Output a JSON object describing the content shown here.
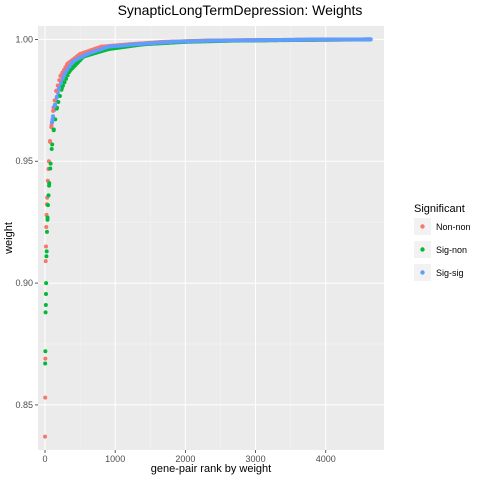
{
  "chart_data": {
    "type": "scatter",
    "title": "SynapticLongTermDepression: Weights",
    "xlabel": "gene-pair rank by weight",
    "ylabel": "weight",
    "xlim": [
      -100,
      4830
    ],
    "ylim": [
      0.8315,
      1.0055
    ],
    "x_ticks": [
      0,
      1000,
      2000,
      3000,
      4000
    ],
    "y_ticks": [
      0.85,
      0.9,
      0.95,
      1.0
    ],
    "x_tick_labels": [
      "0",
      "1000",
      "2000",
      "3000",
      "4000"
    ],
    "y_tick_labels": [
      "0.85",
      "0.90",
      "0.95",
      "1.00"
    ],
    "grid": true,
    "legend_position": "right",
    "legend": {
      "title": "Significant",
      "entries": [
        "Non-non",
        "Sig-non",
        "Sig-sig"
      ]
    },
    "colors": {
      "Non-non": "#F8766D",
      "Sig-non": "#00BA38",
      "Sig-sig": "#619CFF",
      "panel": "#EBEBEB",
      "grid": "#FFFFFF"
    },
    "curve_note_n_points": 4640,
    "series": [
      {
        "name": "Non-non",
        "points": [
          [
            0,
            0.837
          ],
          [
            3,
            0.853
          ],
          [
            10,
            0.909
          ],
          [
            14,
            0.915
          ],
          [
            18,
            0.923
          ],
          [
            22,
            0.928
          ],
          [
            30,
            0.935
          ],
          [
            40,
            0.942
          ],
          [
            55,
            0.95
          ],
          [
            70,
            0.958
          ],
          [
            90,
            0.964
          ],
          [
            120,
            0.972
          ],
          [
            160,
            0.979
          ],
          [
            220,
            0.985
          ],
          [
            320,
            0.99
          ],
          [
            500,
            0.994
          ],
          [
            800,
            0.997
          ],
          [
            1200,
            0.998
          ],
          [
            1700,
            0.999
          ],
          [
            2300,
            0.9995
          ],
          [
            3000,
            0.9997
          ],
          [
            3700,
            0.9998
          ],
          [
            4300,
            0.9999
          ],
          [
            4600,
            1.0
          ]
        ]
      },
      {
        "name": "Sig-non",
        "points": [
          [
            2,
            0.867
          ],
          [
            5,
            0.872
          ],
          [
            8,
            0.888
          ],
          [
            12,
            0.891
          ],
          [
            16,
            0.9
          ],
          [
            20,
            0.911
          ],
          [
            24,
            0.913
          ],
          [
            28,
            0.921
          ],
          [
            35,
            0.926
          ],
          [
            42,
            0.932
          ],
          [
            50,
            0.936
          ],
          [
            60,
            0.941
          ],
          [
            75,
            0.947
          ],
          [
            95,
            0.955
          ],
          [
            125,
            0.963
          ],
          [
            170,
            0.972
          ],
          [
            240,
            0.98
          ],
          [
            350,
            0.987
          ],
          [
            550,
            0.993
          ],
          [
            900,
            0.996
          ],
          [
            1400,
            0.998
          ],
          [
            2000,
            0.999
          ],
          [
            2700,
            0.9995
          ],
          [
            3400,
            0.9997
          ],
          [
            4100,
            0.9999
          ],
          [
            4620,
            1.0
          ]
        ]
      },
      {
        "name": "Sig-sig",
        "points": [
          [
            100,
            0.966
          ],
          [
            140,
            0.973
          ],
          [
            200,
            0.98
          ],
          [
            280,
            0.986
          ],
          [
            400,
            0.991
          ],
          [
            600,
            0.994
          ],
          [
            900,
            0.997
          ],
          [
            1300,
            0.998
          ],
          [
            1800,
            0.999
          ],
          [
            2400,
            0.9995
          ],
          [
            3100,
            0.9997
          ],
          [
            3800,
            0.9999
          ],
          [
            4640,
            1.0
          ]
        ]
      }
    ]
  }
}
